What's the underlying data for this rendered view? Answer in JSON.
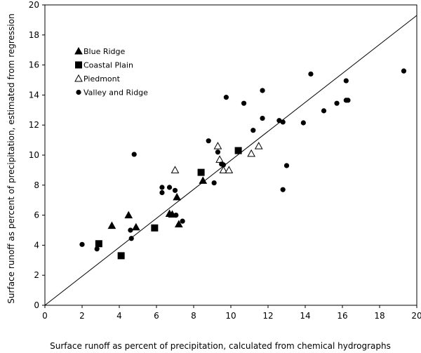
{
  "chart_data": {
    "type": "scatter",
    "xlabel": "Surface runoff as percent of precipitation, calculated from chemical hydrographs",
    "ylabel": "Surface runoff as percent of precipitation, estimated from regression",
    "xlim": [
      0,
      20
    ],
    "ylim": [
      0,
      20
    ],
    "xticks": [
      0,
      2,
      4,
      6,
      8,
      10,
      12,
      14,
      16,
      18,
      20
    ],
    "yticks": [
      0,
      2,
      4,
      6,
      8,
      10,
      12,
      14,
      16,
      18,
      20
    ],
    "grid": false,
    "legend_position": "top-left",
    "reference_line": {
      "x": [
        0,
        20
      ],
      "y": [
        0,
        19.3
      ]
    },
    "series": [
      {
        "name": "Blue Ridge",
        "marker": "filled-triangle",
        "x": [
          3.6,
          4.5,
          4.9,
          6.7,
          7.1,
          7.2,
          8.5,
          6.85
        ],
        "y": [
          5.3,
          6.0,
          5.2,
          6.1,
          7.2,
          5.4,
          8.3,
          6.05
        ]
      },
      {
        "name": "Coastal Plain",
        "marker": "filled-square",
        "x": [
          2.9,
          4.1,
          5.9,
          8.4,
          10.4
        ],
        "y": [
          4.1,
          3.3,
          5.15,
          8.85,
          10.3
        ]
      },
      {
        "name": "Piedmont",
        "marker": "open-triangle",
        "x": [
          7.0,
          9.3,
          9.4,
          9.6,
          9.9,
          11.1,
          11.5
        ],
        "y": [
          9.0,
          10.6,
          9.7,
          9.0,
          9.0,
          10.1,
          10.6
        ]
      },
      {
        "name": "Valley and Ridge",
        "marker": "filled-circle",
        "x": [
          2.0,
          2.8,
          4.6,
          4.8,
          4.65,
          6.3,
          6.3,
          6.7,
          7.0,
          7.4,
          7.05,
          8.8,
          9.1,
          9.3,
          9.5,
          9.6,
          9.75,
          10.7,
          11.2,
          11.7,
          11.7,
          12.6,
          12.8,
          12.8,
          13.0,
          13.9,
          14.3,
          15.0,
          15.7,
          16.2,
          16.3,
          16.2,
          19.3
        ],
        "y": [
          4.05,
          3.75,
          5.0,
          10.05,
          4.45,
          7.85,
          7.5,
          7.85,
          7.65,
          5.6,
          6.0,
          10.95,
          8.15,
          10.2,
          9.4,
          9.35,
          13.85,
          13.45,
          11.65,
          12.45,
          14.3,
          12.3,
          7.7,
          12.2,
          9.3,
          12.15,
          15.4,
          12.95,
          13.45,
          14.95,
          13.65,
          13.65,
          15.6
        ]
      }
    ]
  }
}
